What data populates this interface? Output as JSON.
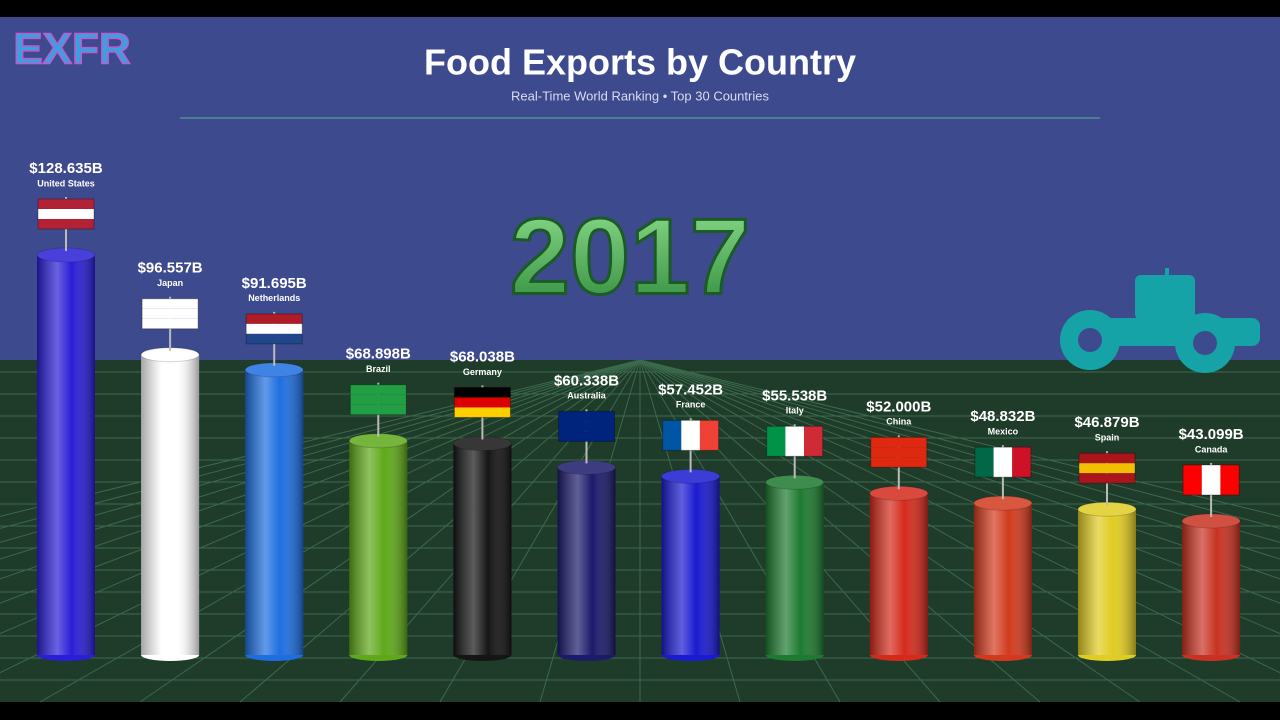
{
  "logo": "EXFR",
  "chart_data": {
    "type": "bar",
    "title": "Food Exports by Country",
    "subtitle": "Real-Time World Ranking • Top 30 Countries",
    "year": "2017",
    "categories": [
      "United States",
      "Japan",
      "Netherlands",
      "Brazil",
      "Germany",
      "Australia",
      "France",
      "Italy",
      "China",
      "Mexico",
      "Spain",
      "Canada"
    ],
    "values": [
      128.635,
      96.557,
      91.695,
      68.898,
      68.038,
      60.338,
      57.452,
      55.538,
      52.0,
      48.832,
      46.879,
      43.099
    ],
    "value_labels": [
      "$128.635B",
      "$96.557B",
      "$91.695B",
      "$68.898B",
      "$68.038B",
      "$60.338B",
      "$57.452B",
      "$55.538B",
      "$52.000B",
      "$48.832B",
      "$46.879B",
      "$43.099B"
    ],
    "colors": [
      "#2a1ed6",
      "#ffffff",
      "#1e6ee0",
      "#5fa81a",
      "#151515",
      "#1c1a6a",
      "#1a1ad0",
      "#1e7a30",
      "#d42a1c",
      "#d23a1e",
      "#e0cc22",
      "#c83222"
    ]
  }
}
